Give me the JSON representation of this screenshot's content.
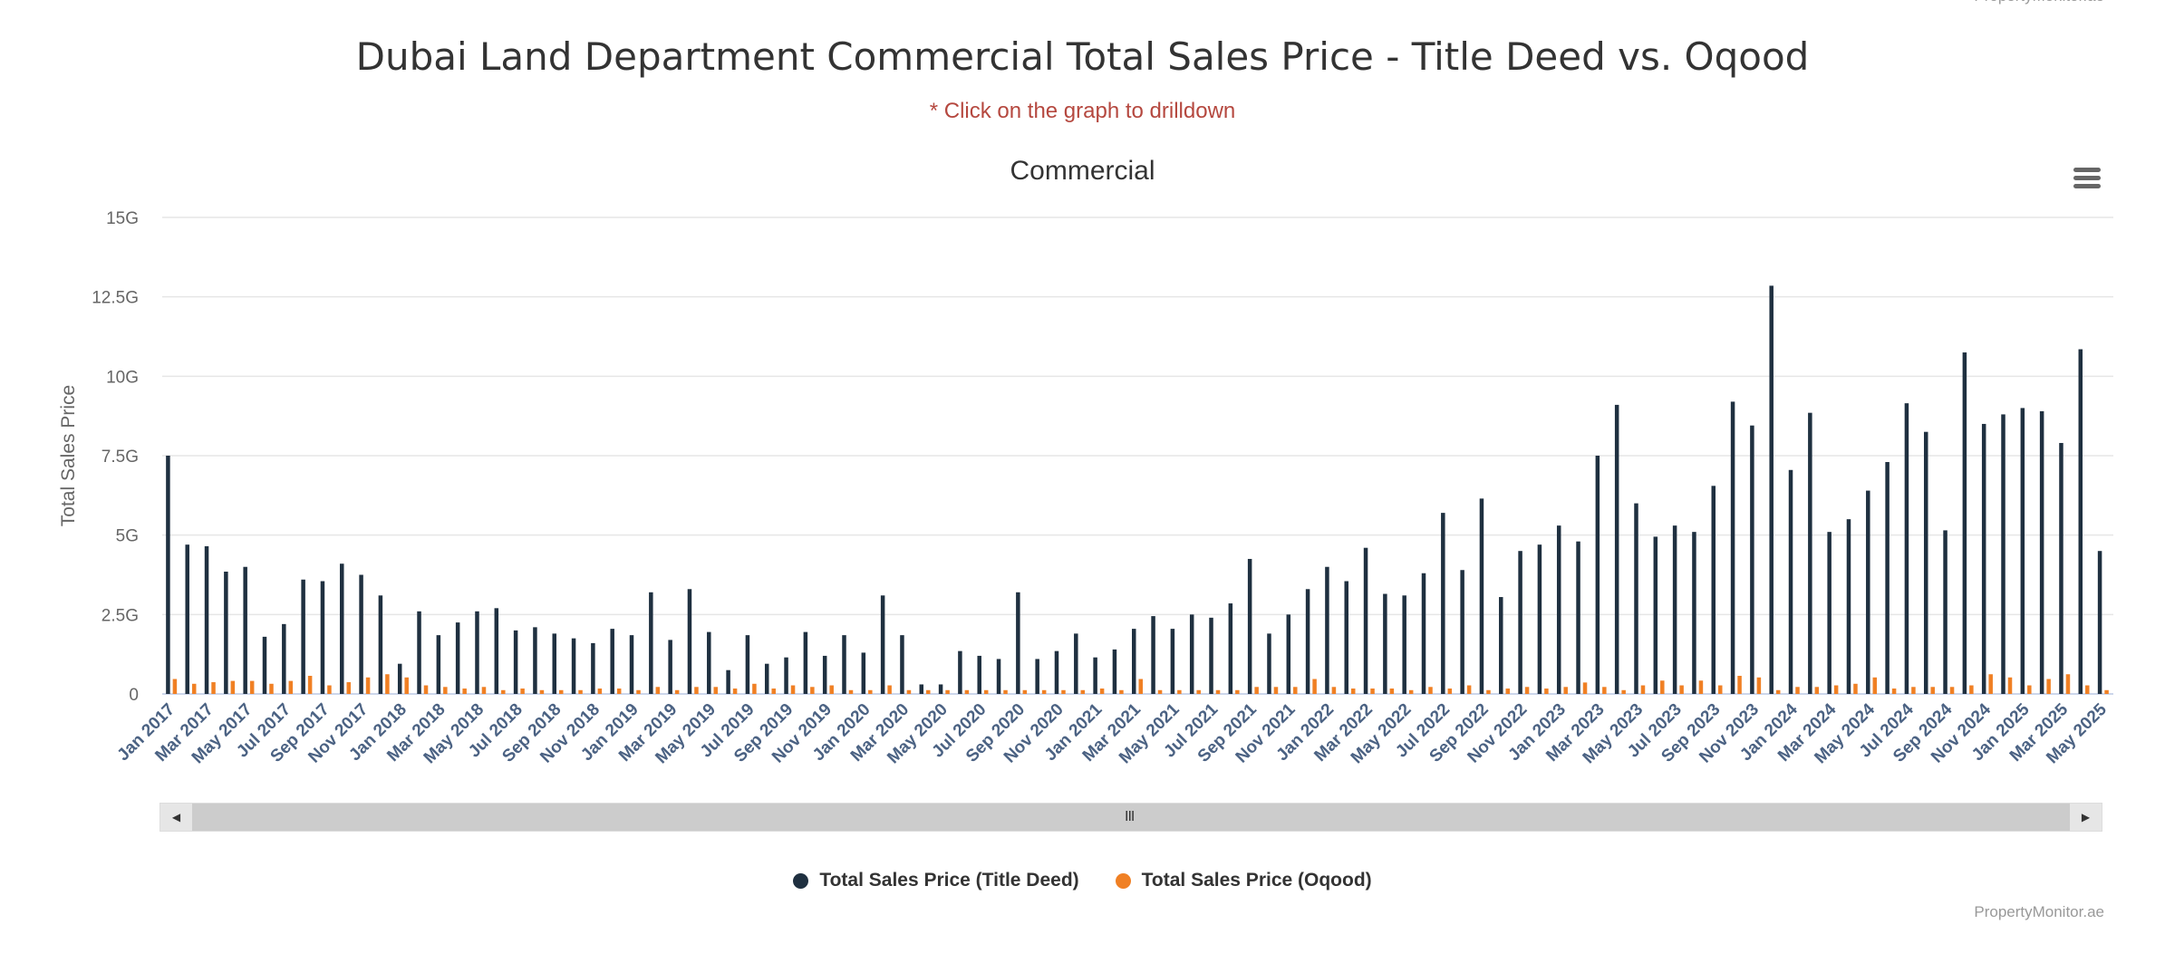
{
  "credit": "PropertyMonitor.ae",
  "title": "Dubai Land Department Commercial Total Sales Price - Title Deed vs. Oqood",
  "subtitle": "* Click on the graph to drilldown",
  "menu_icon": "hamburger-menu-icon",
  "scrollbar": {
    "left_icon": "triangle-left-icon",
    "right_icon": "triangle-right-icon",
    "grip": "III"
  },
  "colors": {
    "title_deed": "#1f3040",
    "oqood": "#f08024",
    "subtitle": "#b5483f",
    "axis_labels": "#4b6283"
  },
  "chart_data": {
    "type": "bar",
    "title": "Commercial",
    "ylabel": "Total Sales Price",
    "xlabel": "",
    "ylim": [
      0,
      15000000000
    ],
    "yticks": [
      {
        "v": 0,
        "label": "0"
      },
      {
        "v": 2500000000,
        "label": "2.5G"
      },
      {
        "v": 5000000000,
        "label": "5G"
      },
      {
        "v": 7500000000,
        "label": "7.5G"
      },
      {
        "v": 10000000000,
        "label": "10G"
      },
      {
        "v": 12500000000,
        "label": "12.5G"
      },
      {
        "v": 15000000000,
        "label": "15G"
      }
    ],
    "grid": true,
    "legend": "bottom-center",
    "categories": [
      "Jan 2017",
      "Feb 2017",
      "Mar 2017",
      "Apr 2017",
      "May 2017",
      "Jun 2017",
      "Jul 2017",
      "Aug 2017",
      "Sep 2017",
      "Oct 2017",
      "Nov 2017",
      "Dec 2017",
      "Jan 2018",
      "Feb 2018",
      "Mar 2018",
      "Apr 2018",
      "May 2018",
      "Jun 2018",
      "Jul 2018",
      "Aug 2018",
      "Sep 2018",
      "Oct 2018",
      "Nov 2018",
      "Dec 2018",
      "Jan 2019",
      "Feb 2019",
      "Mar 2019",
      "Apr 2019",
      "May 2019",
      "Jun 2019",
      "Jul 2019",
      "Aug 2019",
      "Sep 2019",
      "Oct 2019",
      "Nov 2019",
      "Dec 2019",
      "Jan 2020",
      "Feb 2020",
      "Mar 2020",
      "Apr 2020",
      "May 2020",
      "Jun 2020",
      "Jul 2020",
      "Aug 2020",
      "Sep 2020",
      "Oct 2020",
      "Nov 2020",
      "Dec 2020",
      "Jan 2021",
      "Feb 2021",
      "Mar 2021",
      "Apr 2021",
      "May 2021",
      "Jun 2021",
      "Jul 2021",
      "Aug 2021",
      "Sep 2021",
      "Oct 2021",
      "Nov 2021",
      "Dec 2021",
      "Jan 2022",
      "Feb 2022",
      "Mar 2022",
      "Apr 2022",
      "May 2022",
      "Jun 2022",
      "Jul 2022",
      "Aug 2022",
      "Sep 2022",
      "Oct 2022",
      "Nov 2022",
      "Dec 2022",
      "Jan 2023",
      "Feb 2023",
      "Mar 2023",
      "Apr 2023",
      "May 2023",
      "Jun 2023",
      "Jul 2023",
      "Aug 2023",
      "Sep 2023",
      "Oct 2023",
      "Nov 2023",
      "Dec 2023",
      "Jan 2024",
      "Feb 2024",
      "Mar 2024",
      "Apr 2024",
      "May 2024",
      "Jun 2024",
      "Jul 2024",
      "Aug 2024",
      "Sep 2024",
      "Oct 2024",
      "Nov 2024",
      "Dec 2024",
      "Jan 2025",
      "Feb 2025",
      "Mar 2025",
      "Apr 2025",
      "May 2025"
    ],
    "series": [
      {
        "name": "Total Sales Price (Title Deed)",
        "unit": "G",
        "values": [
          7.5,
          4.7,
          4.65,
          3.85,
          4.0,
          1.8,
          2.2,
          3.6,
          3.55,
          4.1,
          3.75,
          3.1,
          0.95,
          2.6,
          1.85,
          2.25,
          2.6,
          2.7,
          2.0,
          2.1,
          1.9,
          1.75,
          1.6,
          2.05,
          1.85,
          3.2,
          1.7,
          3.3,
          1.95,
          0.75,
          1.85,
          0.95,
          1.15,
          1.95,
          1.2,
          1.85,
          1.3,
          3.1,
          1.85,
          0.3,
          0.3,
          1.35,
          1.2,
          1.1,
          3.2,
          1.1,
          1.35,
          1.9,
          1.15,
          1.4,
          2.05,
          2.45,
          2.05,
          2.5,
          2.4,
          2.85,
          4.25,
          1.9,
          2.5,
          3.3,
          4.0,
          3.55,
          4.6,
          3.15,
          3.1,
          3.8,
          5.7,
          3.9,
          6.15,
          3.05,
          4.5,
          4.7,
          5.3,
          4.8,
          7.5,
          9.1,
          6.0,
          4.95,
          5.3,
          5.1,
          6.55,
          9.2,
          8.45,
          12.85,
          7.05,
          8.85,
          5.1,
          5.5,
          6.4,
          7.3,
          9.15,
          8.25,
          5.15,
          10.75,
          8.5,
          8.8,
          9.0,
          8.9,
          7.9,
          10.85,
          4.5
        ]
      },
      {
        "name": "Total Sales Price (Oqood)",
        "unit": "G",
        "values": [
          0.47,
          0.32,
          0.37,
          0.41,
          0.41,
          0.32,
          0.41,
          0.57,
          0.27,
          0.37,
          0.52,
          0.62,
          0.52,
          0.27,
          0.22,
          0.17,
          0.22,
          0.12,
          0.17,
          0.12,
          0.12,
          0.12,
          0.17,
          0.17,
          0.12,
          0.22,
          0.12,
          0.22,
          0.22,
          0.17,
          0.32,
          0.17,
          0.27,
          0.22,
          0.27,
          0.12,
          0.12,
          0.27,
          0.12,
          0.12,
          0.12,
          0.12,
          0.12,
          0.12,
          0.12,
          0.12,
          0.12,
          0.12,
          0.17,
          0.12,
          0.47,
          0.12,
          0.12,
          0.12,
          0.12,
          0.12,
          0.22,
          0.22,
          0.22,
          0.47,
          0.22,
          0.17,
          0.17,
          0.17,
          0.12,
          0.22,
          0.17,
          0.27,
          0.12,
          0.17,
          0.22,
          0.17,
          0.22,
          0.36,
          0.22,
          0.12,
          0.27,
          0.42,
          0.27,
          0.42,
          0.27,
          0.57,
          0.52,
          0.12,
          0.22,
          0.22,
          0.27,
          0.32,
          0.52,
          0.17,
          0.22,
          0.22,
          0.22,
          0.27,
          0.62,
          0.52,
          0.27,
          0.47,
          0.62,
          0.27,
          0.12
        ]
      }
    ]
  }
}
